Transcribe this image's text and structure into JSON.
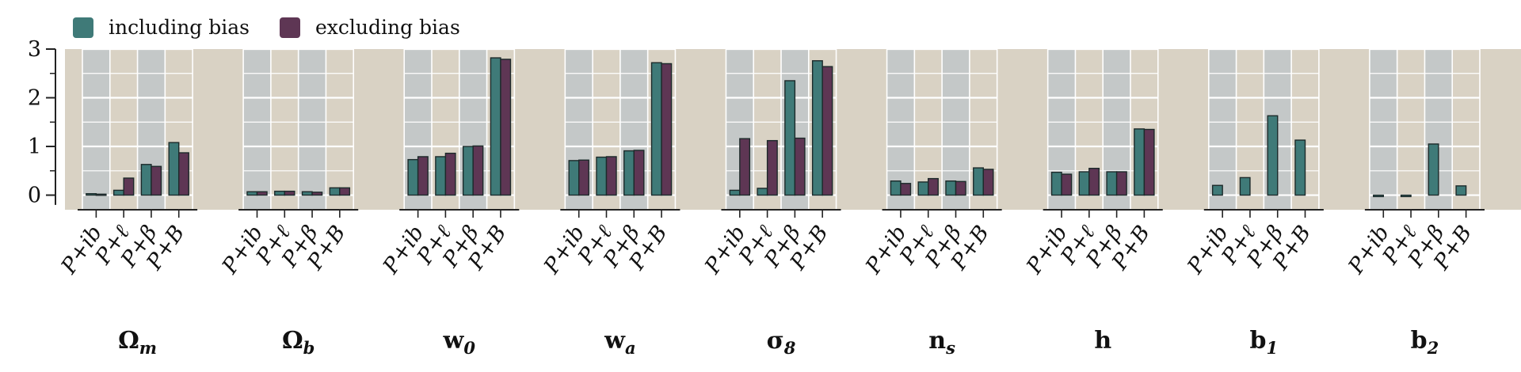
{
  "colors": {
    "panel_bg": "#d9d2c4",
    "band_grey": "#c4c8c8",
    "band_beige": "#d9d2c4",
    "grid": "#ffffff",
    "including_bias": "#3f7a78",
    "excluding_bias": "#5e3654",
    "bar_edge": "#1c2a2a",
    "axis": "#222222"
  },
  "chart_data": {
    "type": "bar",
    "legend": {
      "position": "top-left",
      "entries": [
        "including bias",
        "excluding bias"
      ]
    },
    "y_axis": {
      "ylim": [
        -0.3,
        3.0
      ],
      "ticks": [
        "0",
        "1",
        "2",
        "3"
      ],
      "tick_values": [
        0,
        1,
        2,
        3
      ]
    },
    "categories": [
      "P+ib",
      "P+ℓ",
      "P+β",
      "P+B"
    ],
    "panels": [
      {
        "label": "Ω_m",
        "label_main": "Ω",
        "label_sub": "m",
        "series": [
          {
            "name": "including bias",
            "values": [
              0.03,
              0.1,
              0.63,
              1.08
            ]
          },
          {
            "name": "excluding bias",
            "values": [
              0.02,
              0.35,
              0.59,
              0.87
            ]
          }
        ]
      },
      {
        "label": "Ω_b",
        "label_main": "Ω",
        "label_sub": "b",
        "series": [
          {
            "name": "including bias",
            "values": [
              0.07,
              0.08,
              0.07,
              0.15
            ]
          },
          {
            "name": "excluding bias",
            "values": [
              0.07,
              0.08,
              0.06,
              0.15
            ]
          }
        ]
      },
      {
        "label": "w_0",
        "label_main": "w",
        "label_sub": "0",
        "series": [
          {
            "name": "including bias",
            "values": [
              0.73,
              0.79,
              1.0,
              2.82
            ]
          },
          {
            "name": "excluding bias",
            "values": [
              0.79,
              0.86,
              1.01,
              2.79
            ]
          }
        ]
      },
      {
        "label": "w_a",
        "label_main": "w",
        "label_sub": "a",
        "series": [
          {
            "name": "including bias",
            "values": [
              0.71,
              0.78,
              0.91,
              2.72
            ]
          },
          {
            "name": "excluding bias",
            "values": [
              0.72,
              0.79,
              0.92,
              2.7
            ]
          }
        ]
      },
      {
        "label": "σ_8",
        "label_main": "σ",
        "label_sub": "8",
        "series": [
          {
            "name": "including bias",
            "values": [
              0.1,
              0.14,
              2.35,
              2.76
            ]
          },
          {
            "name": "excluding bias",
            "values": [
              1.16,
              1.12,
              1.17,
              2.64
            ]
          }
        ]
      },
      {
        "label": "n_s",
        "label_main": "n",
        "label_sub": "s",
        "series": [
          {
            "name": "including bias",
            "values": [
              0.29,
              0.27,
              0.29,
              0.56
            ]
          },
          {
            "name": "excluding bias",
            "values": [
              0.24,
              0.34,
              0.28,
              0.53
            ]
          }
        ]
      },
      {
        "label": "h",
        "label_main": "h",
        "label_sub": "",
        "series": [
          {
            "name": "including bias",
            "values": [
              0.47,
              0.48,
              0.48,
              1.36
            ]
          },
          {
            "name": "excluding bias",
            "values": [
              0.43,
              0.55,
              0.48,
              1.35
            ]
          }
        ]
      },
      {
        "label": "b_1",
        "label_main": "b",
        "label_sub": "1",
        "series": [
          {
            "name": "including bias",
            "values": [
              0.2,
              0.36,
              1.63,
              1.13
            ]
          }
        ]
      },
      {
        "label": "b_2",
        "label_main": "b",
        "label_sub": "2",
        "series": [
          {
            "name": "including bias",
            "values": [
              -0.03,
              -0.03,
              1.05,
              0.19
            ]
          }
        ]
      }
    ]
  }
}
